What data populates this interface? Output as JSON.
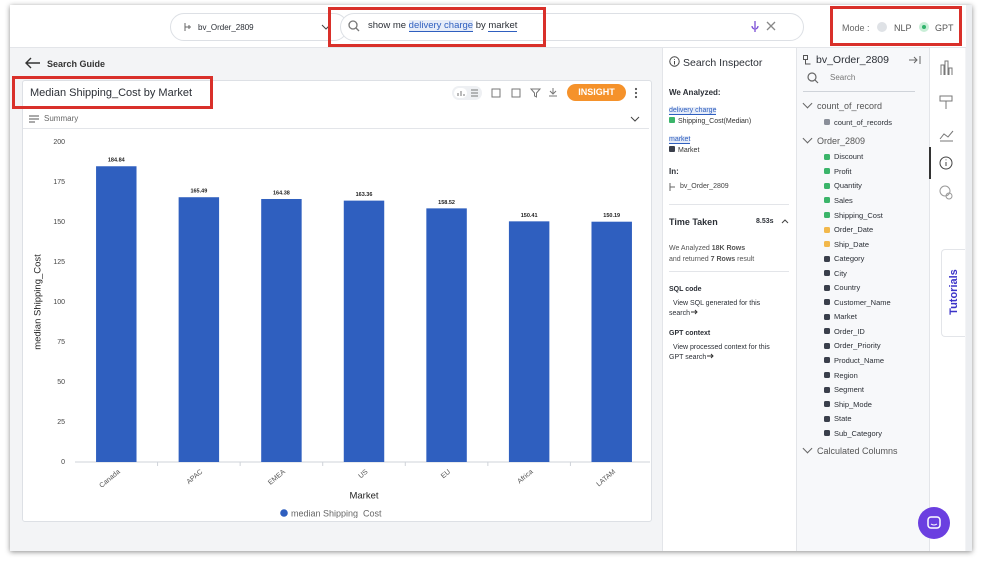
{
  "top_bar": {
    "dataset": "bv_Order_2809",
    "query": [
      "show me ",
      "delivery charge",
      " by ",
      "market"
    ],
    "mode_label": "Mode :",
    "modes": [
      "NLP",
      "GPT"
    ]
  },
  "nav": {
    "back": "Search Guide"
  },
  "card": {
    "summary": "Summary",
    "insight": "INSIGHT"
  },
  "chart_data": {
    "type": "bar",
    "title": "Median Shipping_Cost by Market",
    "x_label": "Market",
    "y_label": "median Shipping_Cost",
    "categories": [
      "Canada",
      "APAC",
      "EMEA",
      "US",
      "EU",
      "Africa",
      "LATAM"
    ],
    "series": [
      {
        "name": "median Shipping_Cost",
        "color": "#2f5fbf",
        "values": [
          184.84,
          165.49,
          164.38,
          163.36,
          158.52,
          150.41,
          150.19
        ]
      }
    ],
    "ylim": [
      0,
      200
    ],
    "yticks": [
      0,
      25,
      50,
      75,
      100,
      125,
      150,
      175,
      200
    ],
    "grid": false
  },
  "inspector": {
    "title": "Search Inspector",
    "analyzed_label": "We Analyzed:",
    "terms": [
      {
        "phrase": "delivery charge",
        "column": "Shipping_Cost(Median)",
        "color": "#3bb56a"
      },
      {
        "phrase": "market",
        "column": "Market",
        "color": "#3a3f4b"
      }
    ],
    "in_label": "In:",
    "in_value": "bv_Order_2809",
    "time_label": "Time Taken",
    "time_value": "8.53s",
    "result": [
      "We Analyzed ",
      "18K Rows",
      " and returned ",
      "7 Rows",
      " result"
    ],
    "sql_title": "SQL code",
    "sql_link": "View SQL generated for this search",
    "gpt_title": "GPT context",
    "gpt_link": "View processed context for this GPT search"
  },
  "columns_panel": {
    "title": "bv_Order_2809",
    "search_placeholder": "Search",
    "groups": [
      {
        "name": "count_of_record",
        "items": [
          {
            "name": "count_of_records",
            "color": "#8a8f99"
          }
        ]
      },
      {
        "name": "Order_2809",
        "items": [
          {
            "name": "Discount",
            "color": "#3bb56a"
          },
          {
            "name": "Profit",
            "color": "#3bb56a"
          },
          {
            "name": "Quantity",
            "color": "#3bb56a"
          },
          {
            "name": "Sales",
            "color": "#3bb56a"
          },
          {
            "name": "Shipping_Cost",
            "color": "#3bb56a"
          },
          {
            "name": "Order_Date",
            "color": "#f2b84b"
          },
          {
            "name": "Ship_Date",
            "color": "#f2b84b"
          },
          {
            "name": "Category",
            "color": "#3a3f4b"
          },
          {
            "name": "City",
            "color": "#3a3f4b"
          },
          {
            "name": "Country",
            "color": "#3a3f4b"
          },
          {
            "name": "Customer_Name",
            "color": "#3a3f4b"
          },
          {
            "name": "Market",
            "color": "#3a3f4b"
          },
          {
            "name": "Order_ID",
            "color": "#3a3f4b"
          },
          {
            "name": "Order_Priority",
            "color": "#3a3f4b"
          },
          {
            "name": "Product_Name",
            "color": "#3a3f4b"
          },
          {
            "name": "Region",
            "color": "#3a3f4b"
          },
          {
            "name": "Segment",
            "color": "#3a3f4b"
          },
          {
            "name": "Ship_Mode",
            "color": "#3a3f4b"
          },
          {
            "name": "State",
            "color": "#3a3f4b"
          },
          {
            "name": "Sub_Category",
            "color": "#3a3f4b"
          }
        ]
      },
      {
        "name": "Calculated Columns",
        "items": []
      }
    ]
  },
  "tutorials": "Tutorials"
}
